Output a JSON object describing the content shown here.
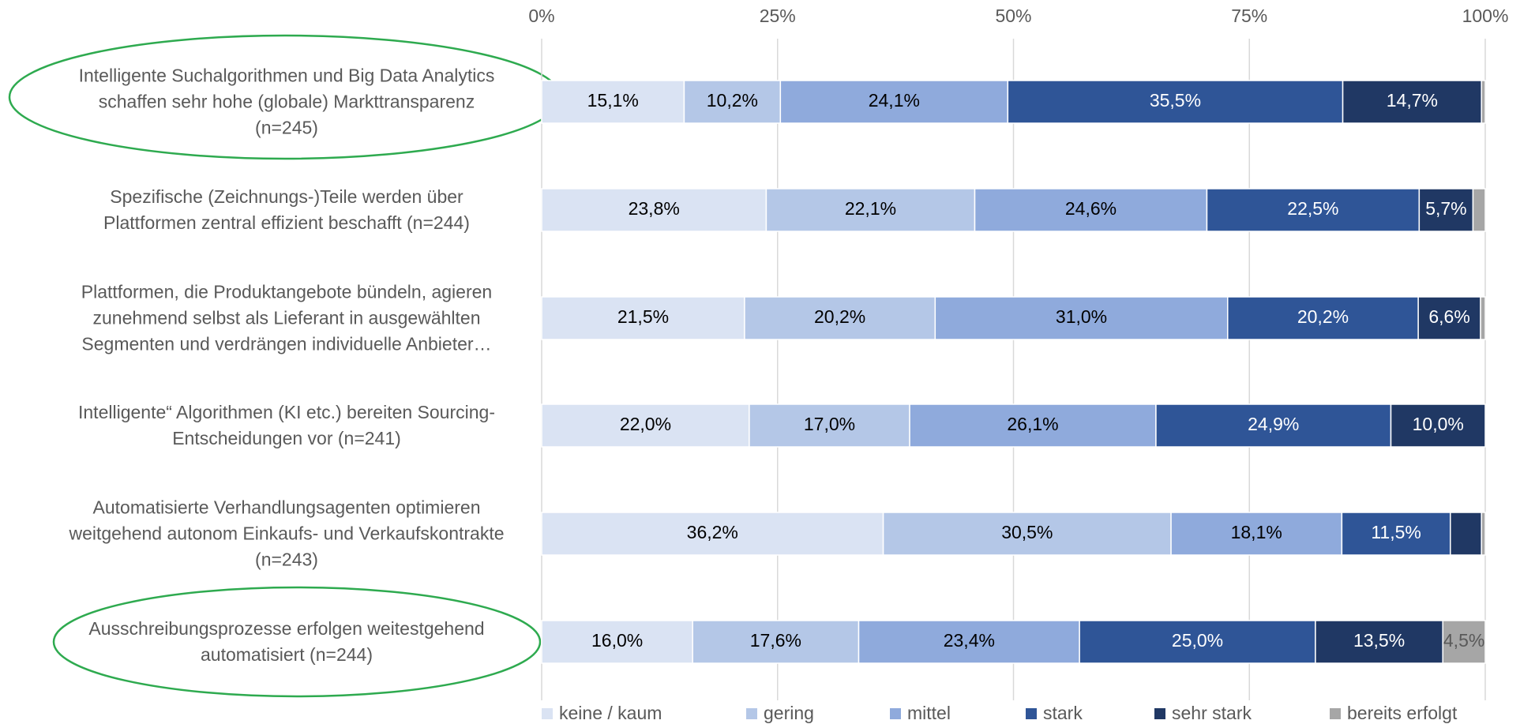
{
  "chart_data": {
    "type": "stacked_barh",
    "categories": [
      "Intelligente Suchalgorithmen und Big Data Analytics\nschaffen sehr hohe (globale) Markttransparenz\n(n=245)",
      "Spezifische (Zeichnungs-)Teile werden über\nPlattformen zentral effizient beschafft (n=244)",
      "Plattformen, die Produktangebote bündeln, agieren\nzunehmend selbst als Lieferant in ausgewählten\nSegmenten und verdrängen individuelle Anbieter…",
      "Intelligente“ Algorithmen (KI etc.) bereiten Sourcing-\nEntscheidungen vor (n=241)",
      "Automatisierte Verhandlungsagenten optimieren\nweitgehend autonom Einkaufs- und Verkaufskontrakte\n(n=243)",
      "Ausschreibungsprozesse erfolgen weitestgehend\nautomatisiert (n=244)"
    ],
    "series": [
      {
        "name": "keine / kaum",
        "color": "#dae3f3",
        "values": [
          15.1,
          23.8,
          21.5,
          22.0,
          36.2,
          16.0
        ],
        "value_labels": [
          "15,1%",
          "23,8%",
          "21,5%",
          "22,0%",
          "36,2%",
          "16,0%"
        ]
      },
      {
        "name": "gering",
        "color": "#b4c7e7",
        "values": [
          10.2,
          22.1,
          20.2,
          17.0,
          30.5,
          17.6
        ],
        "value_labels": [
          "10,2%",
          "22,1%",
          "20,2%",
          "17,0%",
          "30,5%",
          "17,6%"
        ]
      },
      {
        "name": "mittel",
        "color": "#8faadc",
        "values": [
          24.1,
          24.6,
          31.0,
          26.1,
          18.1,
          23.4
        ],
        "value_labels": [
          "24,1%",
          "24,6%",
          "31,0%",
          "26,1%",
          "18,1%",
          "23,4%"
        ]
      },
      {
        "name": "stark",
        "color": "#2f5597",
        "values": [
          35.5,
          22.5,
          20.2,
          24.9,
          11.5,
          25.0
        ],
        "value_labels": [
          "35,5%",
          "22,5%",
          "20,2%",
          "24,9%",
          "11,5%",
          "25,0%"
        ]
      },
      {
        "name": "sehr stark",
        "color": "#203864",
        "values": [
          14.7,
          5.7,
          6.6,
          10.0,
          3.3,
          13.5
        ],
        "value_labels": [
          "14,7%",
          "5,7%",
          "6,6%",
          "10,0%",
          null,
          "13,5%"
        ]
      },
      {
        "name": "bereits erfolgt",
        "color": "#a6a6a6",
        "values": [
          0.4,
          1.3,
          0.5,
          0,
          0.4,
          4.5
        ],
        "value_labels": [
          null,
          null,
          null,
          null,
          null,
          "4,5%"
        ]
      }
    ],
    "xlim": [
      0,
      100
    ],
    "xticks": [
      {
        "value": 0,
        "label": "0%"
      },
      {
        "value": 25,
        "label": "25%"
      },
      {
        "value": 50,
        "label": "50%"
      },
      {
        "value": 75,
        "label": "75%"
      },
      {
        "value": 100,
        "label": "100%"
      }
    ],
    "grid": true,
    "legend": "bottom"
  }
}
